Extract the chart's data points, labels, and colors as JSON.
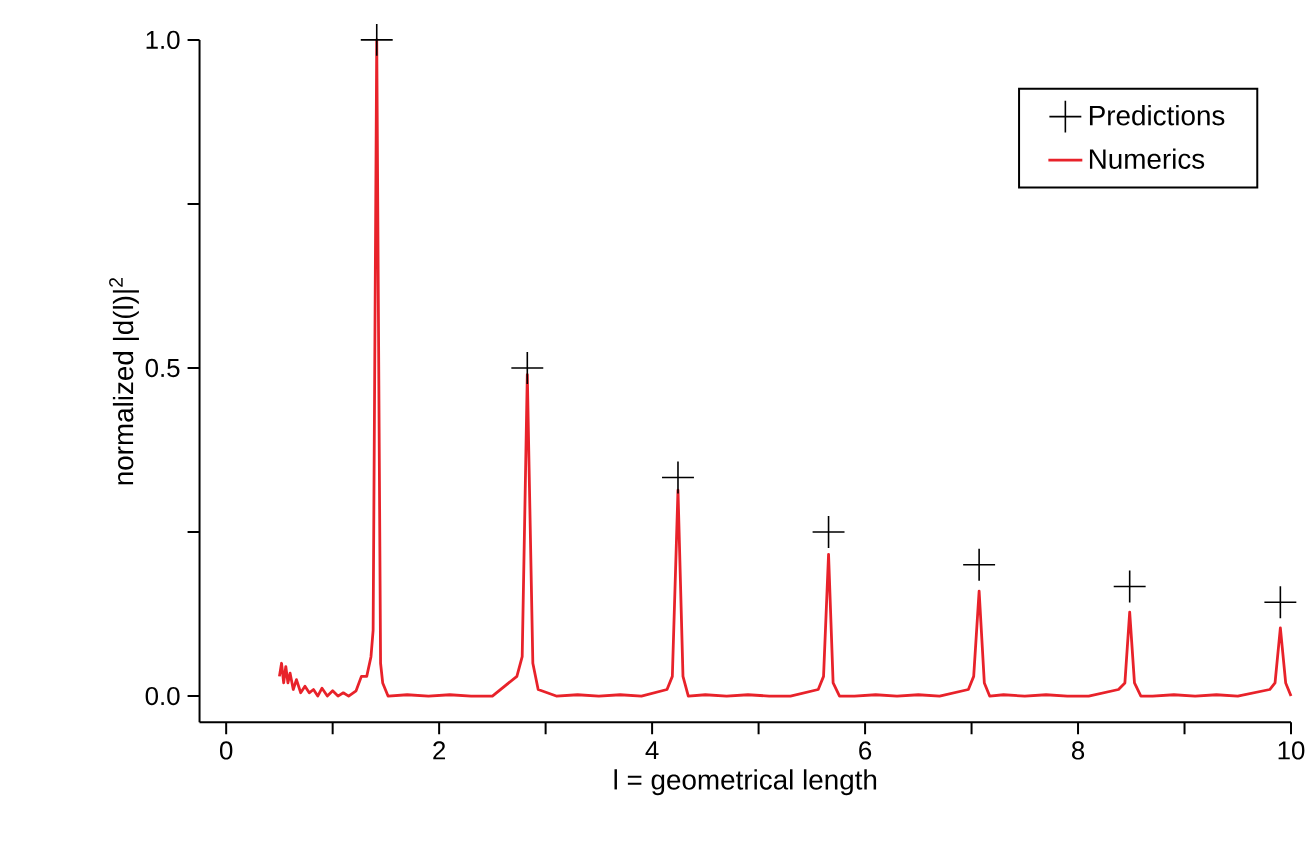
{
  "chart_data": {
    "type": "line",
    "xlabel": "l = geometrical length",
    "ylabel": "normalized |d(l)|$^{2}$",
    "xlim": [
      -0.25,
      10
    ],
    "ylim": [
      -0.04,
      1.0
    ],
    "xticks": [
      0,
      {
        "value": 1,
        "label": null
      },
      2,
      {
        "value": 3,
        "label": null
      },
      4,
      {
        "value": 5,
        "label": null
      },
      6,
      {
        "value": 7,
        "label": null
      },
      8,
      {
        "value": 9,
        "label": null
      },
      10
    ],
    "yticks": [
      {
        "value": 0,
        "label": "0.0"
      },
      {
        "value": 0.25,
        "label": null
      },
      0.5,
      {
        "value": 0.75,
        "label": null
      },
      {
        "value": 1,
        "label": "1.0"
      }
    ],
    "grid": false,
    "legend": "top right",
    "series": [
      {
        "name": "Predictions",
        "type": "scatter",
        "marker": "cross",
        "color": "#000000",
        "x": [
          1.414,
          2.828,
          4.243,
          5.657,
          7.071,
          8.485,
          9.9
        ],
        "values": [
          1.0,
          0.5,
          0.333,
          0.25,
          0.2,
          0.167,
          0.143
        ]
      },
      {
        "name": "Numerics",
        "marker": "none",
        "color": "#e8222a",
        "x": [
          0.5,
          0.52,
          0.54,
          0.56,
          0.58,
          0.6,
          0.63,
          0.66,
          0.7,
          0.74,
          0.78,
          0.82,
          0.86,
          0.9,
          0.95,
          1.0,
          1.05,
          1.1,
          1.15,
          1.22,
          1.27,
          1.32,
          1.36,
          1.38,
          1.414,
          1.45,
          1.47,
          1.52,
          1.7,
          1.9,
          2.1,
          2.3,
          2.5,
          2.73,
          2.78,
          2.828,
          2.88,
          2.93,
          3.1,
          3.3,
          3.5,
          3.7,
          3.9,
          4.14,
          4.19,
          4.243,
          4.29,
          4.34,
          4.5,
          4.7,
          4.9,
          5.1,
          5.3,
          5.56,
          5.61,
          5.657,
          5.7,
          5.76,
          5.9,
          6.1,
          6.3,
          6.5,
          6.7,
          6.97,
          7.02,
          7.071,
          7.12,
          7.17,
          7.3,
          7.5,
          7.7,
          7.9,
          8.1,
          8.38,
          8.44,
          8.485,
          8.53,
          8.59,
          8.7,
          8.9,
          9.1,
          9.3,
          9.5,
          9.8,
          9.85,
          9.9,
          9.95,
          10.0
        ],
        "values": [
          0.03,
          0.05,
          0.02,
          0.045,
          0.02,
          0.035,
          0.01,
          0.025,
          0.005,
          0.015,
          0.005,
          0.01,
          0.0,
          0.012,
          0.0,
          0.008,
          0.0,
          0.005,
          0.0,
          0.008,
          0.03,
          0.03,
          0.06,
          0.1,
          1.0,
          0.05,
          0.02,
          0.0,
          0.002,
          0.0,
          0.002,
          0.0,
          0.0,
          0.03,
          0.06,
          0.49,
          0.05,
          0.01,
          0.0,
          0.002,
          0.0,
          0.002,
          0.0,
          0.01,
          0.03,
          0.314,
          0.03,
          0.0,
          0.002,
          0.0,
          0.002,
          0.0,
          0.0,
          0.01,
          0.03,
          0.216,
          0.02,
          0.0,
          0.0,
          0.002,
          0.0,
          0.002,
          0.0,
          0.01,
          0.03,
          0.16,
          0.02,
          0.0,
          0.002,
          0.0,
          0.002,
          0.0,
          0.0,
          0.01,
          0.02,
          0.128,
          0.02,
          0.0,
          0.0,
          0.002,
          0.0,
          0.002,
          0.0,
          0.01,
          0.02,
          0.104,
          0.02,
          0.0
        ]
      }
    ]
  }
}
